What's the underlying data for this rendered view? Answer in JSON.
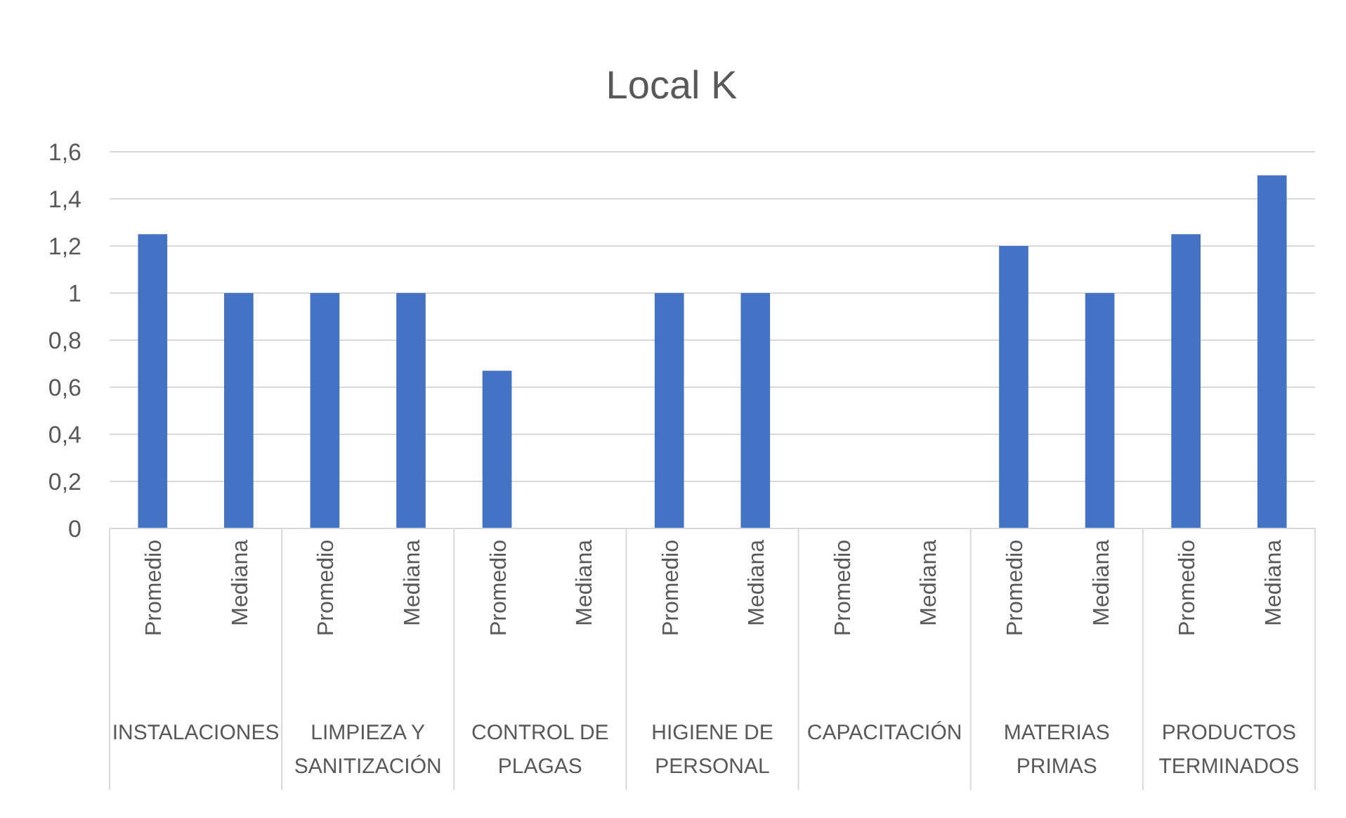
{
  "chart_data": {
    "type": "bar",
    "title": "Local K",
    "categories": [
      "Promedio",
      "Mediana",
      "Promedio",
      "Mediana",
      "Promedio",
      "Mediana",
      "Promedio",
      "Mediana",
      "Promedio",
      "Mediana",
      "Promedio",
      "Mediana",
      "Promedio",
      "Mediana"
    ],
    "annotations": [
      "INSTALACIONES",
      "LIMPIEZA Y SANITIZACIÓN",
      "CONTROL DE PLAGAS",
      "HIGIENE DE PERSONAL",
      "CAPACITACIÓN",
      "MATERIAS PRIMAS",
      "PRODUCTOS TERMINADOS"
    ],
    "values": [
      1.25,
      1,
      1,
      1,
      0.67,
      0,
      1,
      1,
      0,
      0,
      1.2,
      1,
      1.25,
      1.5
    ],
    "color": "#4472c4",
    "ylim": [
      0,
      1.6
    ],
    "yticks": [
      0,
      {
        "value": 0.2,
        "label": "0,2"
      },
      {
        "value": 0.4,
        "label": "0,4"
      },
      {
        "value": 0.6,
        "label": "0,6"
      },
      {
        "value": 0.8,
        "label": "0,8"
      },
      1,
      {
        "value": 1.2,
        "label": "1,2"
      },
      {
        "value": 1.4,
        "label": "1,4"
      },
      {
        "value": 1.6,
        "label": "1,6"
      }
    ],
    "grid": "y"
  }
}
